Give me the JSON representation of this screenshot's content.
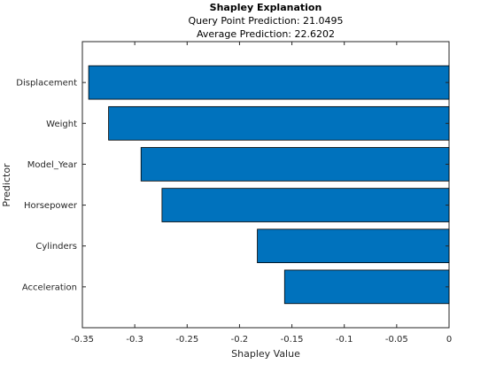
{
  "chart_data": {
    "type": "bar",
    "orientation": "horizontal",
    "title": "Shapley Explanation",
    "subtitle_lines": [
      "Query Point Prediction: 21.0495",
      "Average Prediction: 22.6202"
    ],
    "xlabel": "Shapley Value",
    "ylabel": "Predictor",
    "xlim": [
      -0.35,
      0
    ],
    "xticks": [
      -0.35,
      -0.3,
      -0.25,
      -0.2,
      -0.15,
      -0.1,
      -0.05,
      0
    ],
    "xtick_labels": [
      "-0.35",
      "-0.3",
      "-0.25",
      "-0.2",
      "-0.15",
      "-0.1",
      "-0.05",
      "0"
    ],
    "categories": [
      "Displacement",
      "Weight",
      "Model_Year",
      "Horsepower",
      "Cylinders",
      "Acceleration"
    ],
    "values": [
      -0.344,
      -0.325,
      -0.294,
      -0.274,
      -0.183,
      -0.157
    ],
    "bar_color": "#0072BD",
    "grid": false
  }
}
